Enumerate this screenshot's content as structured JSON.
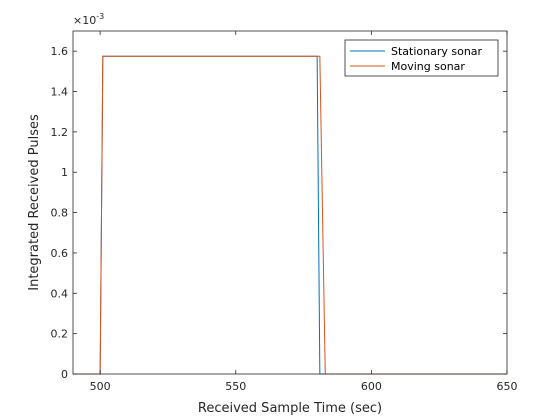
{
  "chart_data": {
    "type": "line",
    "title": "",
    "xlabel": "Received Sample Time (sec)",
    "ylabel": "Integrated Received Pulses",
    "xlim": [
      490,
      650
    ],
    "ylim": [
      0,
      0.0017
    ],
    "y_exponent_label": "×10",
    "y_exponent": "-3",
    "x_ticks": [
      500,
      550,
      600,
      650
    ],
    "x_tick_labels": [
      "500",
      "550",
      "600",
      "650"
    ],
    "y_ticks": [
      0,
      0.0002,
      0.0004,
      0.0006,
      0.0008,
      0.001,
      0.0012,
      0.0014,
      0.0016
    ],
    "y_tick_labels": [
      "0",
      "0.2",
      "0.4",
      "0.6",
      "0.8",
      "1",
      "1.2",
      "1.4",
      "1.6"
    ],
    "grid": false,
    "legend_position": "top-right",
    "series": [
      {
        "name": "Stationary sonar",
        "color": "#0072BD",
        "x": [
          490,
          500,
          501,
          580,
          581,
          650
        ],
        "y": [
          0,
          0,
          0.001575,
          0.001575,
          0,
          0
        ]
      },
      {
        "name": "Moving sonar",
        "color": "#D95319",
        "x": [
          490,
          500,
          501,
          581,
          583,
          650
        ],
        "y": [
          0,
          0,
          0.001575,
          0.001575,
          0,
          0
        ]
      }
    ]
  }
}
